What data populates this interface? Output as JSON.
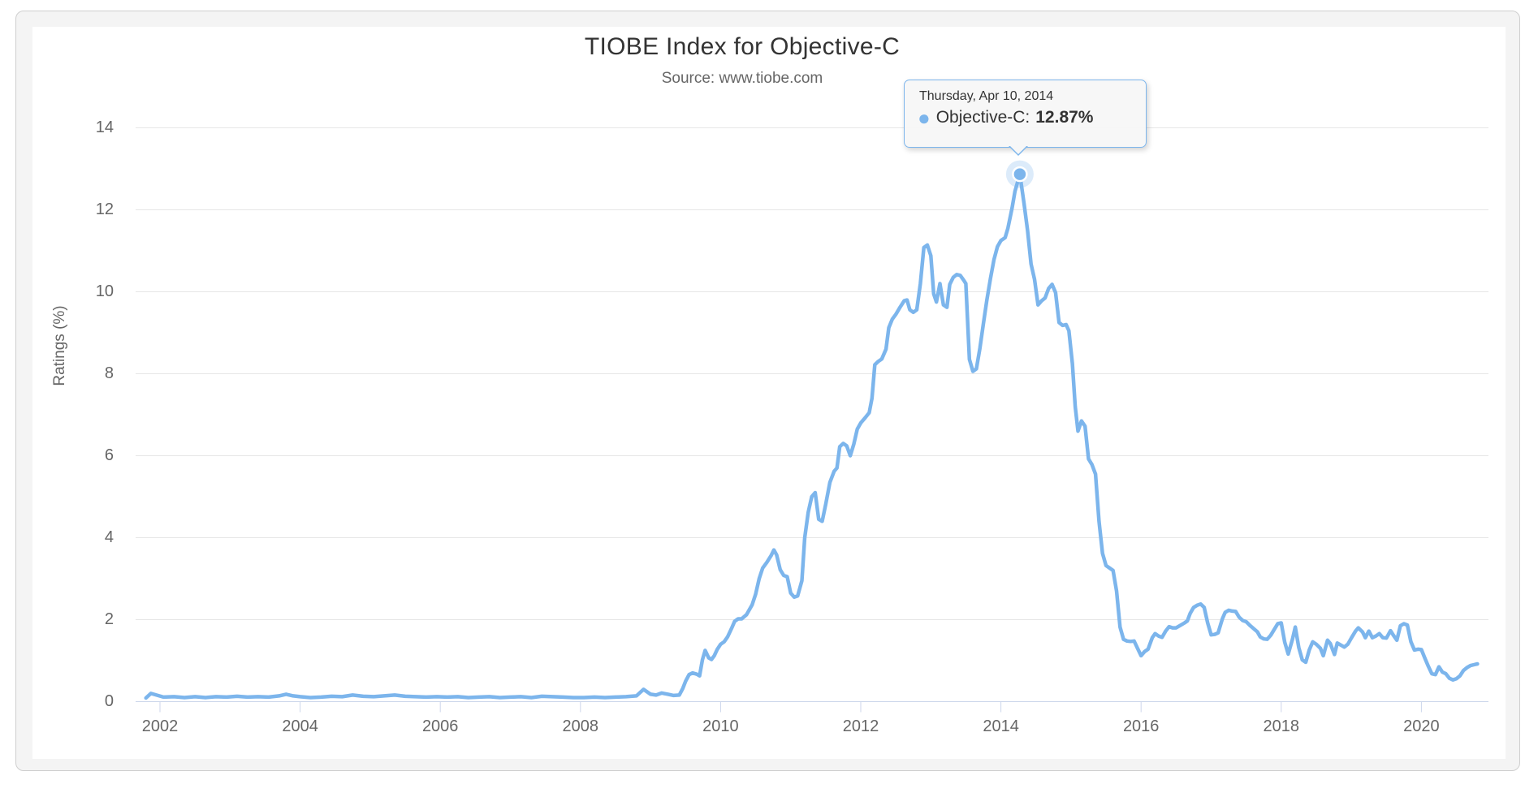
{
  "header": {
    "title": "TIOBE Index for Objective-C",
    "subtitle": "Source: www.tiobe.com"
  },
  "tooltip": {
    "date": "Thursday, Apr 10, 2014",
    "bullet_icon": "●",
    "series_label": "Objective-C:",
    "value": "12.87%"
  },
  "chart_data": {
    "type": "line",
    "title": "TIOBE Index for Objective-C",
    "subtitle": "Source: www.tiobe.com",
    "xlabel": "",
    "ylabel": "Ratings (%)",
    "xlim": [
      2001.65,
      2020.96
    ],
    "ylim": [
      0,
      14.6
    ],
    "grid": true,
    "legend": "none",
    "x_ticks": [
      2002,
      2004,
      2006,
      2008,
      2010,
      2012,
      2014,
      2016,
      2018,
      2020
    ],
    "y_ticks": [
      0,
      2,
      4,
      6,
      8,
      10,
      12,
      14
    ],
    "colors": {
      "accent": "#7cb5ec",
      "gridline": "#e6e6e6",
      "axis": "#ccd6eb",
      "label": "#666666",
      "title": "#333333",
      "tooltip_bg": "#f7f7f7",
      "panel_bg": "#f4f4f4"
    },
    "highlight_point": {
      "x": 2014.27,
      "y": 12.87,
      "label": "Thursday, Apr 10, 2014",
      "series": "Objective-C",
      "value_label": "12.87%"
    },
    "series": [
      {
        "name": "Objective-C",
        "color": "#7cb5ec",
        "points": [
          [
            2001.8,
            0.09
          ],
          [
            2001.87,
            0.2
          ],
          [
            2001.95,
            0.16
          ],
          [
            2002.05,
            0.11
          ],
          [
            2002.2,
            0.12
          ],
          [
            2002.35,
            0.1
          ],
          [
            2002.5,
            0.12
          ],
          [
            2002.65,
            0.1
          ],
          [
            2002.8,
            0.12
          ],
          [
            2002.95,
            0.11
          ],
          [
            2003.1,
            0.13
          ],
          [
            2003.25,
            0.11
          ],
          [
            2003.4,
            0.12
          ],
          [
            2003.55,
            0.11
          ],
          [
            2003.7,
            0.14
          ],
          [
            2003.8,
            0.18
          ],
          [
            2003.9,
            0.14
          ],
          [
            2004.0,
            0.12
          ],
          [
            2004.15,
            0.1
          ],
          [
            2004.3,
            0.11
          ],
          [
            2004.45,
            0.13
          ],
          [
            2004.6,
            0.12
          ],
          [
            2004.75,
            0.16
          ],
          [
            2004.9,
            0.13
          ],
          [
            2005.05,
            0.12
          ],
          [
            2005.2,
            0.14
          ],
          [
            2005.35,
            0.16
          ],
          [
            2005.5,
            0.13
          ],
          [
            2005.65,
            0.12
          ],
          [
            2005.8,
            0.11
          ],
          [
            2005.95,
            0.12
          ],
          [
            2006.1,
            0.11
          ],
          [
            2006.25,
            0.12
          ],
          [
            2006.4,
            0.1
          ],
          [
            2006.55,
            0.11
          ],
          [
            2006.7,
            0.12
          ],
          [
            2006.85,
            0.1
          ],
          [
            2007.0,
            0.11
          ],
          [
            2007.15,
            0.12
          ],
          [
            2007.3,
            0.1
          ],
          [
            2007.45,
            0.13
          ],
          [
            2007.6,
            0.12
          ],
          [
            2007.75,
            0.11
          ],
          [
            2007.9,
            0.1
          ],
          [
            2008.05,
            0.1
          ],
          [
            2008.2,
            0.11
          ],
          [
            2008.35,
            0.1
          ],
          [
            2008.5,
            0.11
          ],
          [
            2008.65,
            0.12
          ],
          [
            2008.8,
            0.14
          ],
          [
            2008.9,
            0.3
          ],
          [
            2009.0,
            0.18
          ],
          [
            2009.08,
            0.16
          ],
          [
            2009.16,
            0.21
          ],
          [
            2009.25,
            0.18
          ],
          [
            2009.33,
            0.15
          ],
          [
            2009.41,
            0.16
          ],
          [
            2009.46,
            0.32
          ],
          [
            2009.5,
            0.5
          ],
          [
            2009.55,
            0.66
          ],
          [
            2009.6,
            0.7
          ],
          [
            2009.66,
            0.67
          ],
          [
            2009.7,
            0.63
          ],
          [
            2009.74,
            1.02
          ],
          [
            2009.78,
            1.25
          ],
          [
            2009.83,
            1.07
          ],
          [
            2009.87,
            1.03
          ],
          [
            2009.91,
            1.12
          ],
          [
            2009.95,
            1.27
          ],
          [
            2010.0,
            1.4
          ],
          [
            2010.05,
            1.46
          ],
          [
            2010.1,
            1.58
          ],
          [
            2010.16,
            1.8
          ],
          [
            2010.2,
            1.96
          ],
          [
            2010.25,
            2.02
          ],
          [
            2010.3,
            2.02
          ],
          [
            2010.37,
            2.12
          ],
          [
            2010.45,
            2.36
          ],
          [
            2010.5,
            2.62
          ],
          [
            2010.55,
            3.0
          ],
          [
            2010.6,
            3.26
          ],
          [
            2010.66,
            3.4
          ],
          [
            2010.72,
            3.56
          ],
          [
            2010.76,
            3.7
          ],
          [
            2010.8,
            3.58
          ],
          [
            2010.85,
            3.22
          ],
          [
            2010.9,
            3.08
          ],
          [
            2010.95,
            3.05
          ],
          [
            2011.0,
            2.65
          ],
          [
            2011.05,
            2.55
          ],
          [
            2011.1,
            2.58
          ],
          [
            2011.16,
            2.95
          ],
          [
            2011.2,
            4.0
          ],
          [
            2011.25,
            4.62
          ],
          [
            2011.3,
            5.0
          ],
          [
            2011.35,
            5.1
          ],
          [
            2011.4,
            4.45
          ],
          [
            2011.45,
            4.4
          ],
          [
            2011.5,
            4.82
          ],
          [
            2011.56,
            5.35
          ],
          [
            2011.62,
            5.62
          ],
          [
            2011.66,
            5.7
          ],
          [
            2011.7,
            6.22
          ],
          [
            2011.75,
            6.3
          ],
          [
            2011.8,
            6.24
          ],
          [
            2011.85,
            6.0
          ],
          [
            2011.9,
            6.28
          ],
          [
            2011.95,
            6.65
          ],
          [
            2012.0,
            6.8
          ],
          [
            2012.06,
            6.92
          ],
          [
            2012.12,
            7.05
          ],
          [
            2012.16,
            7.4
          ],
          [
            2012.2,
            8.22
          ],
          [
            2012.25,
            8.3
          ],
          [
            2012.3,
            8.36
          ],
          [
            2012.36,
            8.6
          ],
          [
            2012.4,
            9.12
          ],
          [
            2012.45,
            9.33
          ],
          [
            2012.5,
            9.45
          ],
          [
            2012.56,
            9.62
          ],
          [
            2012.62,
            9.78
          ],
          [
            2012.66,
            9.8
          ],
          [
            2012.7,
            9.56
          ],
          [
            2012.75,
            9.5
          ],
          [
            2012.8,
            9.56
          ],
          [
            2012.85,
            10.2
          ],
          [
            2012.9,
            11.08
          ],
          [
            2012.95,
            11.14
          ],
          [
            2013.0,
            10.88
          ],
          [
            2013.04,
            9.95
          ],
          [
            2013.08,
            9.75
          ],
          [
            2013.13,
            10.2
          ],
          [
            2013.18,
            9.68
          ],
          [
            2013.23,
            9.62
          ],
          [
            2013.27,
            10.18
          ],
          [
            2013.32,
            10.35
          ],
          [
            2013.37,
            10.42
          ],
          [
            2013.42,
            10.4
          ],
          [
            2013.47,
            10.28
          ],
          [
            2013.5,
            10.2
          ],
          [
            2013.55,
            8.35
          ],
          [
            2013.6,
            8.06
          ],
          [
            2013.65,
            8.12
          ],
          [
            2013.7,
            8.62
          ],
          [
            2013.75,
            9.22
          ],
          [
            2013.8,
            9.8
          ],
          [
            2013.85,
            10.32
          ],
          [
            2013.9,
            10.78
          ],
          [
            2013.95,
            11.1
          ],
          [
            2014.0,
            11.25
          ],
          [
            2014.06,
            11.32
          ],
          [
            2014.1,
            11.55
          ],
          [
            2014.16,
            12.05
          ],
          [
            2014.2,
            12.45
          ],
          [
            2014.27,
            12.87
          ],
          [
            2014.33,
            12.15
          ],
          [
            2014.38,
            11.5
          ],
          [
            2014.43,
            10.68
          ],
          [
            2014.48,
            10.3
          ],
          [
            2014.53,
            9.68
          ],
          [
            2014.58,
            9.78
          ],
          [
            2014.63,
            9.85
          ],
          [
            2014.68,
            10.08
          ],
          [
            2014.73,
            10.18
          ],
          [
            2014.78,
            9.98
          ],
          [
            2014.83,
            9.25
          ],
          [
            2014.88,
            9.18
          ],
          [
            2014.93,
            9.2
          ],
          [
            2014.97,
            9.05
          ],
          [
            2015.02,
            8.25
          ],
          [
            2015.06,
            7.2
          ],
          [
            2015.1,
            6.6
          ],
          [
            2015.15,
            6.85
          ],
          [
            2015.2,
            6.72
          ],
          [
            2015.25,
            5.92
          ],
          [
            2015.3,
            5.78
          ],
          [
            2015.35,
            5.55
          ],
          [
            2015.4,
            4.4
          ],
          [
            2015.45,
            3.62
          ],
          [
            2015.5,
            3.32
          ],
          [
            2015.55,
            3.26
          ],
          [
            2015.6,
            3.2
          ],
          [
            2015.65,
            2.7
          ],
          [
            2015.7,
            1.82
          ],
          [
            2015.75,
            1.52
          ],
          [
            2015.8,
            1.48
          ],
          [
            2015.85,
            1.47
          ],
          [
            2015.9,
            1.48
          ],
          [
            2015.95,
            1.3
          ],
          [
            2016.0,
            1.12
          ],
          [
            2016.05,
            1.22
          ],
          [
            2016.1,
            1.28
          ],
          [
            2016.16,
            1.56
          ],
          [
            2016.2,
            1.66
          ],
          [
            2016.25,
            1.6
          ],
          [
            2016.3,
            1.57
          ],
          [
            2016.35,
            1.72
          ],
          [
            2016.4,
            1.83
          ],
          [
            2016.45,
            1.8
          ],
          [
            2016.5,
            1.8
          ],
          [
            2016.56,
            1.86
          ],
          [
            2016.62,
            1.92
          ],
          [
            2016.66,
            1.97
          ],
          [
            2016.7,
            2.15
          ],
          [
            2016.75,
            2.3
          ],
          [
            2016.8,
            2.35
          ],
          [
            2016.85,
            2.38
          ],
          [
            2016.9,
            2.3
          ],
          [
            2016.95,
            1.92
          ],
          [
            2017.0,
            1.63
          ],
          [
            2017.05,
            1.64
          ],
          [
            2017.1,
            1.68
          ],
          [
            2017.16,
            2.02
          ],
          [
            2017.2,
            2.18
          ],
          [
            2017.25,
            2.23
          ],
          [
            2017.3,
            2.21
          ],
          [
            2017.35,
            2.2
          ],
          [
            2017.4,
            2.06
          ],
          [
            2017.45,
            1.98
          ],
          [
            2017.5,
            1.95
          ],
          [
            2017.56,
            1.85
          ],
          [
            2017.62,
            1.76
          ],
          [
            2017.66,
            1.7
          ],
          [
            2017.7,
            1.58
          ],
          [
            2017.75,
            1.53
          ],
          [
            2017.8,
            1.52
          ],
          [
            2017.85,
            1.62
          ],
          [
            2017.9,
            1.76
          ],
          [
            2017.95,
            1.9
          ],
          [
            2018.0,
            1.92
          ],
          [
            2018.05,
            1.45
          ],
          [
            2018.1,
            1.16
          ],
          [
            2018.16,
            1.52
          ],
          [
            2018.2,
            1.82
          ],
          [
            2018.25,
            1.32
          ],
          [
            2018.3,
            1.02
          ],
          [
            2018.35,
            0.96
          ],
          [
            2018.4,
            1.26
          ],
          [
            2018.45,
            1.46
          ],
          [
            2018.5,
            1.4
          ],
          [
            2018.56,
            1.3
          ],
          [
            2018.6,
            1.12
          ],
          [
            2018.66,
            1.5
          ],
          [
            2018.7,
            1.42
          ],
          [
            2018.76,
            1.15
          ],
          [
            2018.8,
            1.43
          ],
          [
            2018.85,
            1.38
          ],
          [
            2018.9,
            1.33
          ],
          [
            2018.95,
            1.4
          ],
          [
            2019.0,
            1.55
          ],
          [
            2019.06,
            1.72
          ],
          [
            2019.1,
            1.8
          ],
          [
            2019.16,
            1.7
          ],
          [
            2019.2,
            1.56
          ],
          [
            2019.25,
            1.72
          ],
          [
            2019.3,
            1.56
          ],
          [
            2019.35,
            1.6
          ],
          [
            2019.4,
            1.66
          ],
          [
            2019.45,
            1.56
          ],
          [
            2019.5,
            1.55
          ],
          [
            2019.56,
            1.73
          ],
          [
            2019.6,
            1.62
          ],
          [
            2019.65,
            1.5
          ],
          [
            2019.7,
            1.85
          ],
          [
            2019.75,
            1.9
          ],
          [
            2019.8,
            1.87
          ],
          [
            2019.85,
            1.46
          ],
          [
            2019.9,
            1.26
          ],
          [
            2019.95,
            1.28
          ],
          [
            2020.0,
            1.27
          ],
          [
            2020.05,
            1.06
          ],
          [
            2020.1,
            0.86
          ],
          [
            2020.15,
            0.68
          ],
          [
            2020.2,
            0.66
          ],
          [
            2020.25,
            0.85
          ],
          [
            2020.3,
            0.72
          ],
          [
            2020.35,
            0.68
          ],
          [
            2020.4,
            0.57
          ],
          [
            2020.45,
            0.53
          ],
          [
            2020.5,
            0.56
          ],
          [
            2020.55,
            0.63
          ],
          [
            2020.6,
            0.76
          ],
          [
            2020.65,
            0.83
          ],
          [
            2020.7,
            0.88
          ],
          [
            2020.75,
            0.9
          ],
          [
            2020.8,
            0.92
          ]
        ]
      }
    ]
  }
}
